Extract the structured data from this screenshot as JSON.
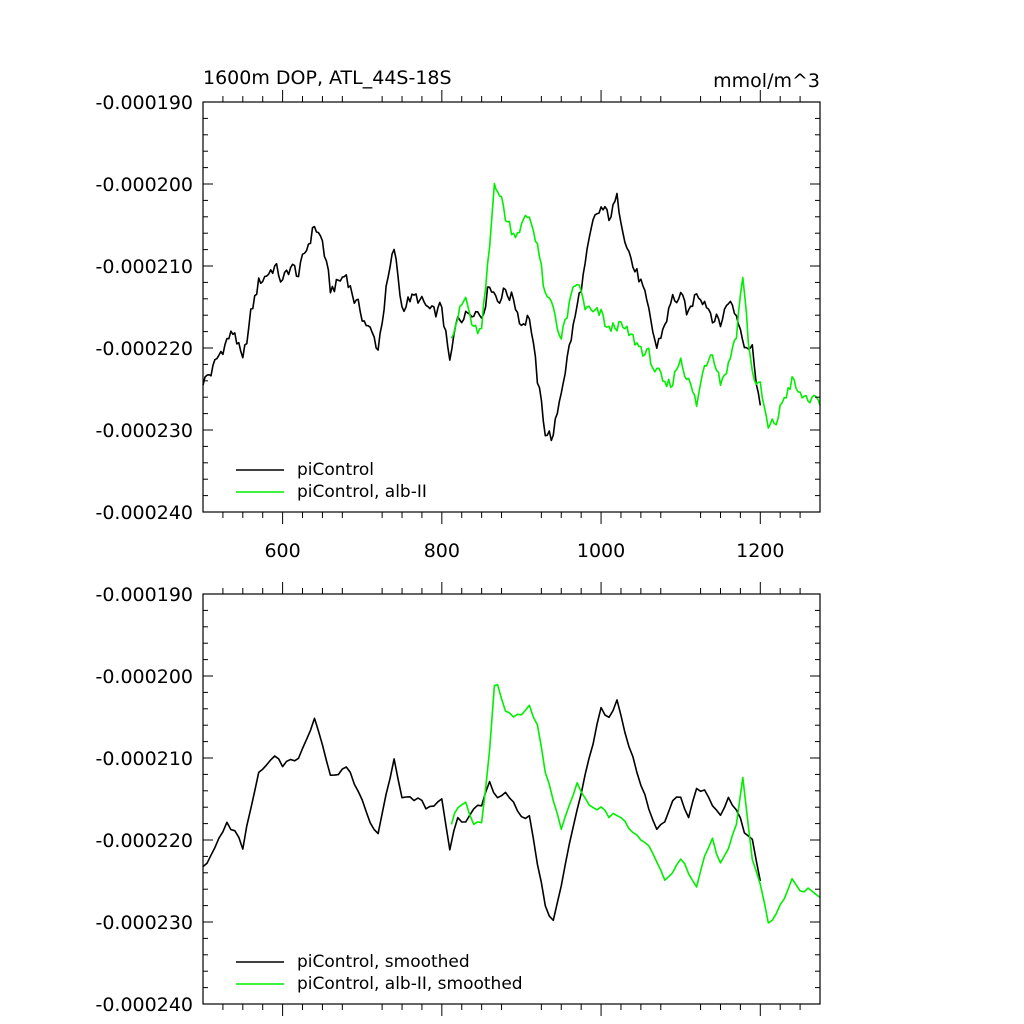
{
  "figure": {
    "title_left": "1600m DOP, ATL_44S-18S",
    "title_right": "mmol/m^3"
  },
  "chart_data": [
    {
      "type": "line",
      "panel": "top",
      "title": "1600m DOP, ATL_44S-18S",
      "units": "mmol/m^3",
      "xlim": [
        500,
        1275
      ],
      "ylim": [
        -0.00024,
        -0.00019
      ],
      "xticks": [
        600,
        800,
        1000,
        1200
      ],
      "xtick_labels": [
        "600",
        "800",
        "1000",
        "1200"
      ],
      "yticks": [
        -0.00019,
        -0.0002,
        -0.00021,
        -0.00022,
        -0.00023,
        -0.00024
      ],
      "ytick_labels": [
        "-0.000190",
        "-0.000200",
        "-0.000210",
        "-0.000220",
        "-0.000230",
        "-0.000240"
      ],
      "legend": {
        "position": "bottom-left",
        "entries": [
          "piControl",
          "piControl, alb-II"
        ]
      },
      "series": [
        {
          "name": "piControl",
          "color": "#000000",
          "anchors": {
            "x": [
              500,
              510,
              520,
              530,
              540,
              550,
              560,
              570,
              580,
              590,
              600,
              610,
              620,
              630,
              640,
              650,
              660,
              670,
              680,
              690,
              700,
              710,
              720,
              730,
              740,
              750,
              760,
              770,
              780,
              790,
              800,
              810,
              820,
              830,
              840,
              850,
              860,
              870,
              880,
              890,
              900,
              910,
              920,
              930,
              940,
              950,
              960,
              970,
              980,
              990,
              1000,
              1010,
              1020,
              1030,
              1040,
              1050,
              1060,
              1070,
              1080,
              1090,
              1100,
              1110,
              1120,
              1130,
              1140,
              1150,
              1160,
              1170,
              1180,
              1190,
              1200
            ],
            "y": [
              -0.000224,
              -0.000223,
              -0.000221,
              -0.000219,
              -0.000218,
              -0.000222,
              -0.000216,
              -0.000212,
              -0.000211,
              -0.00021,
              -0.000212,
              -0.00021,
              -0.000211,
              -0.000208,
              -0.000205,
              -0.000207,
              -0.000213,
              -0.000212,
              -0.000211,
              -0.000214,
              -0.000216,
              -0.000218,
              -0.00022,
              -0.000213,
              -0.000208,
              -0.000215,
              -0.000214,
              -0.000214,
              -0.000215,
              -0.000216,
              -0.000215,
              -0.000222,
              -0.000216,
              -0.000216,
              -0.000215,
              -0.000216,
              -0.000212,
              -0.000214,
              -0.000213,
              -0.000214,
              -0.000217,
              -0.000216,
              -0.000224,
              -0.00023,
              -0.000231,
              -0.000225,
              -0.00022,
              -0.000215,
              -0.00021,
              -0.000205,
              -0.000203,
              -0.000204,
              -0.000202,
              -0.000206,
              -0.00021,
              -0.000212,
              -0.000216,
              -0.00022,
              -0.000217,
              -0.000214,
              -0.000214,
              -0.000216,
              -0.000213,
              -0.000214,
              -0.000216,
              -0.000217,
              -0.000214,
              -0.000216,
              -0.000219,
              -0.00022,
              -0.000227
            ]
          }
        },
        {
          "name": "piControl, alb-II",
          "color": "#00ee00",
          "anchors": {
            "x": [
              812,
              820,
              830,
              840,
              850,
              860,
              866,
              870,
              880,
              890,
              900,
              910,
              920,
              930,
              940,
              950,
              960,
              970,
              980,
              990,
              1000,
              1010,
              1020,
              1030,
              1040,
              1050,
              1060,
              1070,
              1080,
              1090,
              1100,
              1110,
              1120,
              1130,
              1140,
              1150,
              1160,
              1170,
              1178,
              1185,
              1190,
              1200,
              1210,
              1220,
              1230,
              1240,
              1250,
              1260,
              1270,
              1275
            ],
            "y": [
              -0.000218,
              -0.000216,
              -0.000214,
              -0.000218,
              -0.000218,
              -0.000208,
              -0.0002,
              -0.0002,
              -0.000204,
              -0.000206,
              -0.000205,
              -0.000204,
              -0.000207,
              -0.000214,
              -0.000215,
              -0.000219,
              -0.000215,
              -0.000212,
              -0.000215,
              -0.000216,
              -0.000216,
              -0.000218,
              -0.000217,
              -0.000218,
              -0.000219,
              -0.00022,
              -0.000221,
              -0.000223,
              -0.000225,
              -0.000224,
              -0.000221,
              -0.000224,
              -0.000227,
              -0.000222,
              -0.00022,
              -0.000224,
              -0.000222,
              -0.000218,
              -0.000211,
              -0.000219,
              -0.000223,
              -0.000225,
              -0.00023,
              -0.000229,
              -0.000226,
              -0.000224,
              -0.000226,
              -0.000226,
              -0.000227,
              -0.000227
            ]
          }
        }
      ]
    },
    {
      "type": "line",
      "panel": "bottom",
      "xlim": [
        500,
        1275
      ],
      "ylim": [
        -0.00024,
        -0.00019
      ],
      "xticks": [
        600,
        800,
        1000,
        1200
      ],
      "yticks": [
        -0.00019,
        -0.0002,
        -0.00021,
        -0.00022,
        -0.00023,
        -0.00024
      ],
      "ytick_labels": [
        "-0.000190",
        "-0.000200",
        "-0.000210",
        "-0.000220",
        "-0.000230",
        "-0.000240"
      ],
      "legend": {
        "position": "bottom-left",
        "entries": [
          "piControl, smoothed",
          "piControl, alb-II, smoothed"
        ]
      },
      "series": [
        {
          "name": "piControl, smoothed",
          "color": "#000000",
          "anchors": {
            "x": [
              500,
              510,
              520,
              530,
              540,
              550,
              560,
              570,
              580,
              590,
              600,
              610,
              620,
              630,
              640,
              650,
              660,
              670,
              680,
              690,
              700,
              710,
              720,
              730,
              740,
              750,
              760,
              770,
              780,
              790,
              800,
              810,
              820,
              830,
              840,
              850,
              860,
              870,
              880,
              890,
              900,
              910,
              920,
              930,
              940,
              950,
              960,
              970,
              980,
              990,
              1000,
              1010,
              1020,
              1030,
              1040,
              1050,
              1060,
              1070,
              1080,
              1090,
              1100,
              1110,
              1120,
              1130,
              1140,
              1150,
              1160,
              1170,
              1180,
              1190,
              1200
            ],
            "y": [
              -0.000223,
              -0.000222,
              -0.00022,
              -0.000218,
              -0.000219,
              -0.000221,
              -0.000216,
              -0.000212,
              -0.000211,
              -0.00021,
              -0.000211,
              -0.00021,
              -0.00021,
              -0.000208,
              -0.000205,
              -0.000208,
              -0.000212,
              -0.000212,
              -0.000211,
              -0.000213,
              -0.000215,
              -0.000218,
              -0.000219,
              -0.000214,
              -0.00021,
              -0.000215,
              -0.000215,
              -0.000215,
              -0.000216,
              -0.000216,
              -0.000215,
              -0.000221,
              -0.000217,
              -0.000218,
              -0.000216,
              -0.000216,
              -0.000213,
              -0.000215,
              -0.000214,
              -0.000215,
              -0.000217,
              -0.000217,
              -0.000223,
              -0.000228,
              -0.00023,
              -0.000226,
              -0.000221,
              -0.000216,
              -0.000212,
              -0.000208,
              -0.000204,
              -0.000205,
              -0.000203,
              -0.000207,
              -0.00021,
              -0.000213,
              -0.000216,
              -0.000219,
              -0.000218,
              -0.000215,
              -0.000215,
              -0.000217,
              -0.000214,
              -0.000214,
              -0.000216,
              -0.000217,
              -0.000215,
              -0.000216,
              -0.000219,
              -0.00022,
              -0.000225
            ]
          }
        },
        {
          "name": "piControl, alb-II, smoothed",
          "color": "#00ee00",
          "anchors": {
            "x": [
              812,
              820,
              830,
              840,
              850,
              860,
              866,
              870,
              880,
              890,
              900,
              910,
              920,
              930,
              940,
              950,
              960,
              970,
              980,
              990,
              1000,
              1010,
              1020,
              1030,
              1040,
              1050,
              1060,
              1070,
              1080,
              1090,
              1100,
              1110,
              1120,
              1130,
              1140,
              1150,
              1160,
              1170,
              1178,
              1185,
              1190,
              1200,
              1210,
              1220,
              1230,
              1240,
              1250,
              1260,
              1270,
              1275
            ],
            "y": [
              -0.000218,
              -0.000216,
              -0.000215,
              -0.000218,
              -0.000218,
              -0.000209,
              -0.000201,
              -0.000201,
              -0.000204,
              -0.000205,
              -0.000205,
              -0.000204,
              -0.000206,
              -0.000212,
              -0.000215,
              -0.000219,
              -0.000216,
              -0.000213,
              -0.000215,
              -0.000216,
              -0.000216,
              -0.000217,
              -0.000217,
              -0.000218,
              -0.000219,
              -0.00022,
              -0.000221,
              -0.000223,
              -0.000225,
              -0.000224,
              -0.000222,
              -0.000224,
              -0.000226,
              -0.000222,
              -0.00022,
              -0.000223,
              -0.000221,
              -0.000218,
              -0.000212,
              -0.000218,
              -0.000222,
              -0.000225,
              -0.00023,
              -0.000229,
              -0.000227,
              -0.000225,
              -0.000226,
              -0.000226,
              -0.000227,
              -0.000227
            ]
          }
        }
      ]
    }
  ]
}
